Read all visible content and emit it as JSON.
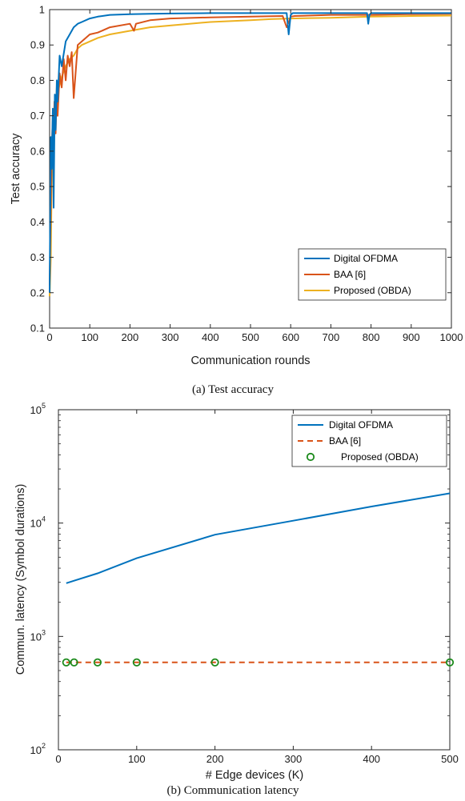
{
  "chart_data": [
    {
      "type": "line",
      "caption": "(a)  Test accuracy",
      "xlabel": "Communication rounds",
      "ylabel": "Test accuracy",
      "xlim": [
        0,
        1000
      ],
      "ylim": [
        0.1,
        1
      ],
      "xticks": [
        "0",
        "100",
        "200",
        "300",
        "400",
        "500",
        "600",
        "700",
        "800",
        "900",
        "1000"
      ],
      "yticks": [
        "0.1",
        "0.2",
        "0.3",
        "0.4",
        "0.5",
        "0.6",
        "0.7",
        "0.8",
        "0.9",
        "1"
      ],
      "grid": false,
      "legend_position": "bottom-right",
      "series": [
        {
          "name": "Digital OFDMA",
          "color": "#0072BD",
          "x": [
            0,
            3,
            5,
            8,
            10,
            13,
            15,
            18,
            20,
            25,
            30,
            40,
            50,
            60,
            70,
            80,
            100,
            120,
            150,
            200,
            250,
            300,
            400,
            500,
            590,
            595,
            600,
            605,
            700,
            790,
            793,
            796,
            800,
            900,
            1000
          ],
          "y": [
            0.2,
            0.64,
            0.55,
            0.72,
            0.44,
            0.76,
            0.66,
            0.8,
            0.74,
            0.87,
            0.84,
            0.91,
            0.93,
            0.95,
            0.96,
            0.965,
            0.975,
            0.98,
            0.985,
            0.987,
            0.988,
            0.989,
            0.99,
            0.99,
            0.99,
            0.93,
            0.985,
            0.99,
            0.99,
            0.99,
            0.96,
            0.985,
            0.99,
            0.99,
            0.99
          ]
        },
        {
          "name": "BAA [6]",
          "color": "#D95319",
          "x": [
            0,
            5,
            8,
            10,
            12,
            15,
            18,
            20,
            25,
            30,
            35,
            40,
            45,
            50,
            55,
            60,
            70,
            80,
            90,
            100,
            120,
            150,
            200,
            210,
            215,
            250,
            300,
            400,
            500,
            580,
            590,
            600,
            610,
            700,
            800,
            900,
            1000
          ],
          "y": [
            0.22,
            0.6,
            0.7,
            0.62,
            0.74,
            0.65,
            0.78,
            0.7,
            0.82,
            0.78,
            0.86,
            0.8,
            0.87,
            0.84,
            0.88,
            0.75,
            0.9,
            0.91,
            0.92,
            0.93,
            0.935,
            0.95,
            0.96,
            0.94,
            0.96,
            0.97,
            0.975,
            0.978,
            0.98,
            0.982,
            0.95,
            0.98,
            0.982,
            0.985,
            0.985,
            0.987,
            0.988
          ]
        },
        {
          "name": "Proposed (OBDA)",
          "color": "#EDB120",
          "x": [
            0,
            3,
            5,
            8,
            10,
            15,
            20,
            25,
            30,
            40,
            50,
            60,
            70,
            80,
            100,
            120,
            150,
            200,
            250,
            300,
            400,
            500,
            550,
            600,
            700,
            800,
            900,
            1000
          ],
          "y": [
            0.19,
            0.3,
            0.5,
            0.62,
            0.68,
            0.72,
            0.76,
            0.79,
            0.81,
            0.84,
            0.86,
            0.87,
            0.89,
            0.9,
            0.91,
            0.92,
            0.93,
            0.94,
            0.95,
            0.955,
            0.965,
            0.97,
            0.973,
            0.975,
            0.977,
            0.98,
            0.982,
            0.983
          ]
        }
      ]
    },
    {
      "type": "line",
      "caption": "(b)  Communication latency",
      "xlabel": "# Edge devices (K)",
      "ylabel": "Commun. latency (Symbol durations)",
      "xlim": [
        0,
        500
      ],
      "ylim": [
        100,
        100000
      ],
      "yscale": "log",
      "xticks": [
        "0",
        "100",
        "200",
        "300",
        "400",
        "500"
      ],
      "yticks": [
        {
          "base": "10",
          "exp": "2"
        },
        {
          "base": "10",
          "exp": "3"
        },
        {
          "base": "10",
          "exp": "4"
        },
        {
          "base": "10",
          "exp": "5"
        }
      ],
      "grid": false,
      "legend_position": "top-right",
      "series": [
        {
          "name": "Digital OFDMA",
          "color": "#0072BD",
          "style": "solid",
          "x": [
            10,
            20,
            50,
            100,
            200,
            300,
            400,
            500
          ],
          "y": [
            2950,
            3100,
            3600,
            4900,
            7900,
            10500,
            14000,
            18300
          ]
        },
        {
          "name": "BAA [6]",
          "color": "#D95319",
          "style": "dashed",
          "x": [
            10,
            500
          ],
          "y": [
            590,
            590
          ]
        },
        {
          "name": "Proposed (OBDA)",
          "color": "#1B8A1B",
          "style": "markers",
          "x": [
            10,
            20,
            50,
            100,
            200,
            500
          ],
          "y": [
            590,
            590,
            590,
            590,
            590,
            590
          ]
        }
      ]
    }
  ]
}
